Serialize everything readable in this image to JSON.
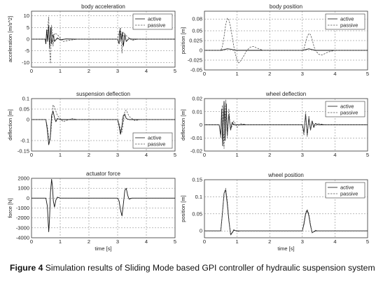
{
  "figure_caption": {
    "label": "Figure 4",
    "text": "Simulation results of Sliding Mode based GPI controller of hydraulic suspension system"
  },
  "chart_data": [
    {
      "id": "body_acc",
      "type": "line",
      "title": "body acceleration",
      "xlabel": "",
      "ylabel": "acceleration [m/s^2]",
      "xlim": [
        0,
        5
      ],
      "ylim": [
        -12,
        12
      ],
      "xticks": [
        0,
        1,
        2,
        3,
        4,
        5
      ],
      "xtick_labels": [
        "0",
        "1",
        "2",
        "3",
        "4",
        "5"
      ],
      "yticks": [
        10,
        5,
        0,
        -5,
        -10
      ],
      "ytick_labels": [
        "10",
        "5",
        "0",
        "-5",
        "-10"
      ],
      "grid": true,
      "legend": {
        "position": "top-right",
        "entries": [
          "active",
          "passive"
        ]
      },
      "series": [
        {
          "name": "active",
          "style": "solid",
          "x": [
            0,
            0.48,
            0.5,
            0.53,
            0.56,
            0.6,
            0.63,
            0.67,
            0.7,
            0.75,
            0.8,
            0.9,
            1.0,
            1.2,
            1.5,
            2.0,
            3.0,
            3.05,
            3.08,
            3.12,
            3.16,
            3.2,
            3.25,
            3.3,
            3.4,
            3.5,
            4.0,
            5.0
          ],
          "y": [
            0,
            0,
            -2,
            4,
            -1,
            6,
            -4,
            5,
            -2,
            2,
            -1,
            0.5,
            -0.3,
            0.1,
            0,
            0,
            0,
            -2,
            4,
            -1,
            3,
            -3,
            2,
            -1,
            0.3,
            0,
            0,
            0
          ]
        },
        {
          "name": "passive",
          "style": "dashed",
          "x": [
            0,
            0.5,
            0.55,
            0.6,
            0.63,
            0.66,
            0.7,
            0.75,
            0.8,
            0.9,
            1.0,
            1.1,
            1.3,
            1.6,
            2.0,
            3.0,
            3.05,
            3.1,
            3.15,
            3.2,
            3.3,
            3.4,
            3.5,
            3.7,
            4.0,
            5.0
          ],
          "y": [
            0,
            0,
            3,
            9.5,
            -5,
            -10.5,
            6,
            -3,
            2.5,
            2,
            0.5,
            -1,
            -0.5,
            0,
            0,
            0,
            3,
            5,
            -6,
            3,
            1.5,
            0.5,
            -0.5,
            0,
            0,
            0
          ]
        }
      ]
    },
    {
      "id": "body_pos",
      "type": "line",
      "title": "body position",
      "xlabel": "",
      "ylabel": "position [m]",
      "xlim": [
        0,
        5
      ],
      "ylim": [
        -0.05,
        0.1
      ],
      "xticks": [
        0,
        1,
        2,
        3,
        4,
        5
      ],
      "xtick_labels": [
        "0",
        "1",
        "2",
        "3",
        "4",
        "5"
      ],
      "yticks": [
        0.08,
        0.05,
        0.025,
        0,
        -0.025,
        -0.05
      ],
      "ytick_labels": [
        "0.08",
        "0.05",
        "0.025",
        "0",
        "-0.025",
        "-0.05"
      ],
      "grid": true,
      "legend": {
        "position": "top-right",
        "entries": [
          "active",
          "passive"
        ]
      },
      "series": [
        {
          "name": "active",
          "style": "solid",
          "x": [
            0,
            0.5,
            0.6,
            0.7,
            0.8,
            0.9,
            1.0,
            1.2,
            1.5,
            2.0,
            3.0,
            3.1,
            3.2,
            3.3,
            3.4,
            3.6,
            4.0,
            5.0
          ],
          "y": [
            0,
            0,
            0.002,
            0.004,
            0.003,
            0.001,
            0,
            0,
            0,
            0,
            0,
            0.002,
            0.004,
            0.002,
            0,
            0,
            0,
            0
          ]
        },
        {
          "name": "passive",
          "style": "dashed",
          "x": [
            0,
            0.5,
            0.55,
            0.6,
            0.65,
            0.7,
            0.75,
            0.8,
            0.85,
            0.9,
            0.95,
            1.0,
            1.05,
            1.1,
            1.2,
            1.3,
            1.4,
            1.5,
            1.6,
            1.8,
            2.0,
            2.5,
            3.0,
            3.05,
            3.1,
            3.15,
            3.2,
            3.25,
            3.3,
            3.35,
            3.4,
            3.5,
            3.6,
            3.8,
            4.0,
            4.5,
            5.0
          ],
          "y": [
            0,
            0,
            0.01,
            0.035,
            0.065,
            0.082,
            0.078,
            0.06,
            0.035,
            0.01,
            -0.01,
            -0.025,
            -0.032,
            -0.028,
            -0.015,
            0,
            0.008,
            0.01,
            0.006,
            0,
            0,
            0,
            0,
            0.005,
            0.02,
            0.035,
            0.043,
            0.04,
            0.028,
            0.012,
            0,
            -0.01,
            -0.012,
            -0.004,
            0,
            0,
            0
          ]
        }
      ]
    },
    {
      "id": "susp_defl",
      "type": "line",
      "title": "suspension deflection",
      "xlabel": "",
      "ylabel": "deflection [m]",
      "xlim": [
        0,
        5
      ],
      "ylim": [
        -0.15,
        0.1
      ],
      "xticks": [
        0,
        1,
        2,
        3,
        4,
        5
      ],
      "xtick_labels": [
        "0",
        "1",
        "2",
        "3",
        "4",
        "5"
      ],
      "yticks": [
        0.1,
        0.05,
        0,
        -0.1,
        -0.15
      ],
      "ytick_labels": [
        "0.1",
        "0.05",
        "0",
        "-0.1",
        "-0.15"
      ],
      "grid": true,
      "legend": {
        "position": "bottom-right",
        "entries": [
          "active",
          "passive"
        ]
      },
      "series": [
        {
          "name": "active",
          "style": "solid",
          "x": [
            0,
            0.5,
            0.55,
            0.6,
            0.65,
            0.7,
            0.75,
            0.8,
            0.85,
            0.9,
            1.0,
            1.2,
            2.0,
            3.0,
            3.05,
            3.1,
            3.15,
            3.2,
            3.25,
            3.3,
            3.4,
            3.6,
            4.0,
            5.0
          ],
          "y": [
            0,
            0,
            -0.05,
            -0.12,
            -0.09,
            0.02,
            0.04,
            0.01,
            -0.01,
            0.005,
            0,
            0,
            0,
            0,
            -0.03,
            -0.07,
            -0.03,
            0.02,
            0.025,
            0.005,
            0,
            0,
            0,
            0
          ]
        },
        {
          "name": "passive",
          "style": "dashed",
          "x": [
            0,
            0.5,
            0.55,
            0.6,
            0.65,
            0.7,
            0.75,
            0.8,
            0.85,
            0.9,
            1.0,
            1.1,
            1.2,
            1.4,
            1.6,
            2.0,
            3.0,
            3.05,
            3.1,
            3.15,
            3.2,
            3.25,
            3.3,
            3.35,
            3.4,
            3.6,
            3.8,
            4.0,
            5.0
          ],
          "y": [
            0,
            0,
            -0.03,
            -0.09,
            -0.1,
            -0.02,
            0.07,
            0.06,
            0.04,
            0.02,
            0.005,
            -0.01,
            -0.005,
            0.005,
            0,
            0,
            0,
            -0.02,
            -0.05,
            -0.06,
            -0.01,
            0.04,
            0.045,
            0.03,
            0.015,
            -0.005,
            0,
            0,
            0
          ]
        }
      ]
    },
    {
      "id": "wheel_defl",
      "type": "line",
      "title": "wheel deflection",
      "xlabel": "",
      "ylabel": "deflection [m]",
      "xlim": [
        0,
        5
      ],
      "ylim": [
        -0.02,
        0.02
      ],
      "xticks": [
        0,
        1,
        2,
        3,
        4,
        5
      ],
      "xtick_labels": [
        "0",
        "1",
        "2",
        "3",
        "4",
        "5"
      ],
      "yticks": [
        0.02,
        0.01,
        0,
        -0.01,
        -0.02
      ],
      "ytick_labels": [
        "0.02",
        "0.01",
        "0",
        "-0.01",
        "-0.02"
      ],
      "grid": true,
      "legend": {
        "position": "top-right",
        "entries": [
          "active",
          "passive"
        ]
      },
      "series": [
        {
          "name": "active",
          "style": "solid",
          "x": [
            0,
            0.45,
            0.5,
            0.53,
            0.56,
            0.6,
            0.63,
            0.67,
            0.7,
            0.75,
            0.8,
            0.85,
            0.9,
            1.0,
            1.2,
            2.0,
            3.0,
            3.05,
            3.1,
            3.15,
            3.2,
            3.25,
            3.3,
            3.35,
            3.4,
            3.5,
            4.0,
            5.0
          ],
          "y": [
            0,
            0,
            -0.008,
            0.012,
            -0.016,
            0.018,
            -0.012,
            0.016,
            -0.008,
            0.008,
            -0.004,
            0.002,
            0,
            0,
            0,
            0,
            0,
            -0.006,
            0.008,
            -0.008,
            0.005,
            -0.004,
            0.003,
            -0.002,
            0.001,
            0,
            0,
            0
          ]
        },
        {
          "name": "passive",
          "style": "dashed",
          "x": [
            0,
            0.45,
            0.5,
            0.55,
            0.6,
            0.65,
            0.7,
            0.75,
            0.8,
            0.9,
            1.0,
            1.1,
            1.3,
            1.6,
            2.0,
            3.0,
            3.05,
            3.1,
            3.15,
            3.2,
            3.25,
            3.3,
            3.4,
            3.5,
            3.7,
            4.0,
            5.0
          ],
          "y": [
            0,
            0,
            -0.01,
            0.015,
            -0.018,
            0.019,
            -0.01,
            0.012,
            -0.004,
            0.003,
            -0.002,
            0.001,
            0,
            0,
            0,
            0,
            -0.008,
            0.01,
            -0.009,
            0.007,
            -0.004,
            0.002,
            -0.001,
            0.001,
            0,
            0,
            0
          ]
        }
      ]
    },
    {
      "id": "act_force",
      "type": "line",
      "title": "actuator force",
      "xlabel": "time [s]",
      "ylabel": "force [N]",
      "xlim": [
        0,
        5
      ],
      "ylim": [
        -4000,
        2000
      ],
      "xticks": [
        0,
        1,
        2,
        3,
        4,
        5
      ],
      "xtick_labels": [
        "0",
        "1",
        "2",
        "3",
        "4",
        "5"
      ],
      "yticks": [
        2000,
        1000,
        0,
        -1000,
        -2000,
        -3000,
        -4000
      ],
      "ytick_labels": [
        "2000",
        "1000",
        "0",
        "-1000",
        "-2000",
        "-3000",
        "-4000"
      ],
      "grid": true,
      "series": [
        {
          "name": "",
          "style": "solid",
          "x": [
            0,
            0.5,
            0.55,
            0.6,
            0.63,
            0.66,
            0.7,
            0.73,
            0.76,
            0.8,
            0.85,
            0.9,
            1.0,
            2.0,
            3.0,
            3.05,
            3.1,
            3.15,
            3.2,
            3.25,
            3.3,
            3.35,
            3.4,
            3.5,
            4.0,
            5.0
          ],
          "y": [
            0,
            0,
            -800,
            -3400,
            -2000,
            600,
            1900,
            1200,
            -300,
            -900,
            -200,
            100,
            0,
            0,
            0,
            -300,
            -1200,
            -1800,
            -600,
            800,
            1000,
            300,
            -100,
            0,
            0,
            0
          ]
        }
      ]
    },
    {
      "id": "wheel_pos",
      "type": "line",
      "title": "wheel position",
      "xlabel": "time [s]",
      "ylabel": "position [m]",
      "xlim": [
        0,
        5
      ],
      "ylim": [
        -0.02,
        0.15
      ],
      "xticks": [
        0,
        1,
        2,
        3,
        4,
        5
      ],
      "xtick_labels": [
        "0",
        "1",
        "2",
        "3",
        "4",
        "5"
      ],
      "yticks": [
        0.15,
        0.1,
        0.05,
        0
      ],
      "ytick_labels": [
        "0.15",
        "0.1",
        "0.05",
        "0"
      ],
      "grid": true,
      "legend": {
        "position": "top-right",
        "entries": [
          "active",
          "passive"
        ]
      },
      "series": [
        {
          "name": "active",
          "style": "solid",
          "x": [
            0,
            0.5,
            0.55,
            0.6,
            0.65,
            0.7,
            0.75,
            0.8,
            0.85,
            0.9,
            1.0,
            2.0,
            3.0,
            3.05,
            3.1,
            3.15,
            3.2,
            3.25,
            3.3,
            3.4,
            4.0,
            5.0
          ],
          "y": [
            0,
            0,
            0.05,
            0.11,
            0.12,
            0.08,
            0.03,
            -0.01,
            -0.005,
            0.002,
            0,
            0,
            0,
            0.02,
            0.05,
            0.06,
            0.045,
            0.015,
            -0.005,
            0,
            0,
            0
          ]
        },
        {
          "name": "passive",
          "style": "dashed",
          "x": [
            0,
            0.5,
            0.55,
            0.6,
            0.65,
            0.7,
            0.75,
            0.8,
            0.85,
            0.9,
            1.0,
            1.1,
            2.0,
            3.0,
            3.05,
            3.1,
            3.15,
            3.2,
            3.25,
            3.3,
            3.4,
            3.5,
            4.0,
            5.0
          ],
          "y": [
            0,
            0,
            0.05,
            0.11,
            0.125,
            0.09,
            0.035,
            -0.012,
            -0.008,
            0.004,
            -0.002,
            0,
            0,
            0,
            0.025,
            0.055,
            0.063,
            0.05,
            0.02,
            -0.006,
            0.002,
            0,
            0,
            0
          ]
        }
      ]
    }
  ]
}
